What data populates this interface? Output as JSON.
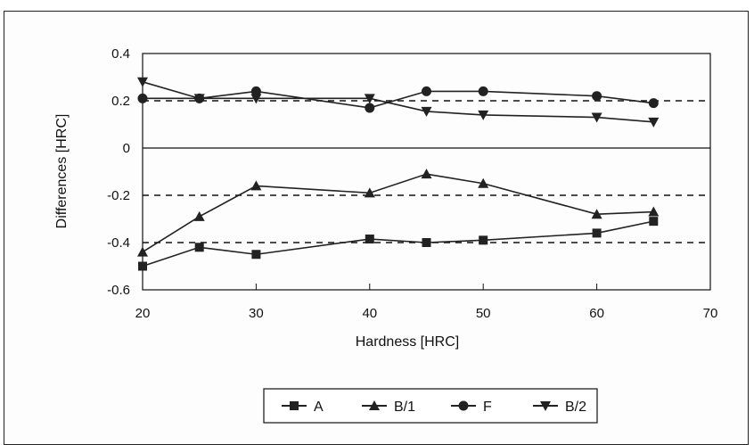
{
  "chart_data": {
    "type": "line",
    "xlabel": "Hardness [HRC]",
    "ylabel": "Differences [HRC]",
    "xlim": [
      20,
      70
    ],
    "ylim": [
      -0.6,
      0.4
    ],
    "x_ticks": [
      "20",
      "30",
      "40",
      "50",
      "60",
      "70"
    ],
    "y_ticks": [
      "0.4",
      "0.2",
      "0",
      "-0.2",
      "-0.4",
      "-0.6"
    ],
    "x_tick_values": [
      20,
      30,
      40,
      50,
      60,
      70
    ],
    "y_tick_values": [
      0.4,
      0.2,
      0,
      -0.2,
      -0.4,
      -0.6
    ],
    "reference_lines": [
      0.2,
      -0.2,
      -0.4
    ],
    "legend_position": "bottom-center",
    "grid": false,
    "series": [
      {
        "name": "A",
        "marker": "square",
        "x": [
          20,
          25,
          30,
          40,
          45,
          50,
          60,
          65
        ],
        "y": [
          -0.5,
          -0.42,
          -0.45,
          -0.385,
          -0.4,
          -0.39,
          -0.36,
          -0.31
        ]
      },
      {
        "name": "B/1",
        "marker": "triangle-up",
        "x": [
          20,
          25,
          30,
          40,
          45,
          50,
          60,
          65
        ],
        "y": [
          -0.44,
          -0.29,
          -0.16,
          -0.19,
          -0.11,
          -0.15,
          -0.28,
          -0.27
        ]
      },
      {
        "name": "F",
        "marker": "circle",
        "x": [
          20,
          25,
          30,
          40,
          45,
          50,
          60,
          65
        ],
        "y": [
          0.21,
          0.21,
          0.24,
          0.17,
          0.24,
          0.24,
          0.22,
          0.19
        ]
      },
      {
        "name": "B/2",
        "marker": "triangle-down",
        "x": [
          20,
          25,
          30,
          40,
          45,
          50,
          60,
          65
        ],
        "y": [
          0.28,
          0.21,
          0.21,
          0.21,
          0.155,
          0.14,
          0.13,
          0.11
        ]
      }
    ]
  }
}
